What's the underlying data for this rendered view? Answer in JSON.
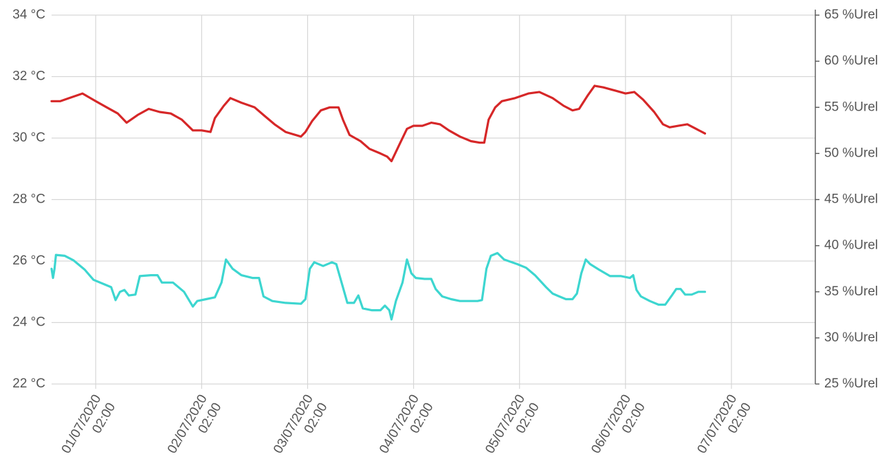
{
  "chart_data": {
    "type": "line",
    "y_left": {
      "ticks": [
        "22 °C",
        "24 °C",
        "26 °C",
        "28 °C",
        "30 °C",
        "32 °C",
        "34 °C"
      ],
      "range": [
        22,
        34
      ],
      "unit": "°C"
    },
    "y_right": {
      "ticks": [
        "25 %Urel",
        "30 %Urel",
        "35 %Urel",
        "40 %Urel",
        "45 %Urel",
        "50 %Urel",
        "55 %Urel",
        "60 %Urel",
        "65 %Urel"
      ],
      "range": [
        25,
        65
      ],
      "unit": "%Urel"
    },
    "x_range": [
      "2020-06-30T16:00",
      "2020-07-07T21:00"
    ],
    "x_ticks": [
      {
        "date": "01/07/2020",
        "time": "02:00",
        "x": "2020-07-01T02:00"
      },
      {
        "date": "02/07/2020",
        "time": "02:00",
        "x": "2020-07-02T02:00"
      },
      {
        "date": "03/07/2020",
        "time": "02:00",
        "x": "2020-07-03T02:00"
      },
      {
        "date": "04/07/2020",
        "time": "02:00",
        "x": "2020-07-04T02:00"
      },
      {
        "date": "05/07/2020",
        "time": "02:00",
        "x": "2020-07-05T02:00"
      },
      {
        "date": "06/07/2020",
        "time": "02:00",
        "x": "2020-07-06T02:00"
      },
      {
        "date": "07/07/2020",
        "time": "02:00",
        "x": "2020-07-07T02:00"
      }
    ],
    "grid": true,
    "series": [
      {
        "axis": "left",
        "color": "#d62728",
        "points": [
          [
            "2020-06-30T16:00",
            31.2
          ],
          [
            "2020-06-30T18:00",
            31.2
          ],
          [
            "2020-06-30T20:00",
            31.3
          ],
          [
            "2020-06-30T23:00",
            31.45
          ],
          [
            "2020-07-01T02:00",
            31.2
          ],
          [
            "2020-07-01T04:30",
            31.0
          ],
          [
            "2020-07-01T07:00",
            30.8
          ],
          [
            "2020-07-01T09:00",
            30.5
          ],
          [
            "2020-07-01T11:30",
            30.75
          ],
          [
            "2020-07-01T14:00",
            30.95
          ],
          [
            "2020-07-01T16:30",
            30.85
          ],
          [
            "2020-07-01T19:00",
            30.8
          ],
          [
            "2020-07-01T21:30",
            30.6
          ],
          [
            "2020-07-02T00:00",
            30.25
          ],
          [
            "2020-07-02T02:00",
            30.25
          ],
          [
            "2020-07-02T04:00",
            30.2
          ],
          [
            "2020-07-02T05:00",
            30.65
          ],
          [
            "2020-07-02T07:00",
            31.05
          ],
          [
            "2020-07-02T08:30",
            31.3
          ],
          [
            "2020-07-02T11:00",
            31.15
          ],
          [
            "2020-07-02T14:00",
            31.0
          ],
          [
            "2020-07-02T16:00",
            30.75
          ],
          [
            "2020-07-02T18:30",
            30.45
          ],
          [
            "2020-07-02T21:00",
            30.2
          ],
          [
            "2020-07-03T00:30",
            30.05
          ],
          [
            "2020-07-03T01:30",
            30.2
          ],
          [
            "2020-07-03T03:00",
            30.55
          ],
          [
            "2020-07-03T05:00",
            30.9
          ],
          [
            "2020-07-03T07:00",
            31.0
          ],
          [
            "2020-07-03T09:00",
            31.0
          ],
          [
            "2020-07-03T10:00",
            30.6
          ],
          [
            "2020-07-03T11:30",
            30.1
          ],
          [
            "2020-07-03T14:00",
            29.9
          ],
          [
            "2020-07-03T16:00",
            29.65
          ],
          [
            "2020-07-03T18:30",
            29.5
          ],
          [
            "2020-07-03T20:00",
            29.4
          ],
          [
            "2020-07-03T21:00",
            29.25
          ],
          [
            "2020-07-03T23:00",
            29.85
          ],
          [
            "2020-07-04T00:30",
            30.3
          ],
          [
            "2020-07-04T02:00",
            30.4
          ],
          [
            "2020-07-04T04:00",
            30.4
          ],
          [
            "2020-07-04T06:00",
            30.5
          ],
          [
            "2020-07-04T08:00",
            30.45
          ],
          [
            "2020-07-04T10:00",
            30.25
          ],
          [
            "2020-07-04T12:30",
            30.05
          ],
          [
            "2020-07-04T15:00",
            29.9
          ],
          [
            "2020-07-04T17:00",
            29.85
          ],
          [
            "2020-07-04T18:00",
            29.85
          ],
          [
            "2020-07-04T19:00",
            30.6
          ],
          [
            "2020-07-04T20:30",
            31.0
          ],
          [
            "2020-07-04T22:00",
            31.2
          ],
          [
            "2020-07-05T01:00",
            31.3
          ],
          [
            "2020-07-05T04:00",
            31.45
          ],
          [
            "2020-07-05T06:30",
            31.5
          ],
          [
            "2020-07-05T09:30",
            31.3
          ],
          [
            "2020-07-05T12:00",
            31.05
          ],
          [
            "2020-07-05T14:00",
            30.9
          ],
          [
            "2020-07-05T15:30",
            30.95
          ],
          [
            "2020-07-05T17:30",
            31.4
          ],
          [
            "2020-07-05T19:00",
            31.7
          ],
          [
            "2020-07-05T21:00",
            31.65
          ],
          [
            "2020-07-05T23:30",
            31.55
          ],
          [
            "2020-07-06T02:00",
            31.45
          ],
          [
            "2020-07-06T04:00",
            31.5
          ],
          [
            "2020-07-06T06:00",
            31.25
          ],
          [
            "2020-07-06T08:30",
            30.85
          ],
          [
            "2020-07-06T10:30",
            30.45
          ],
          [
            "2020-07-06T12:00",
            30.35
          ],
          [
            "2020-07-06T14:00",
            30.4
          ],
          [
            "2020-07-06T16:00",
            30.45
          ],
          [
            "2020-07-06T18:00",
            30.3
          ],
          [
            "2020-07-06T20:00",
            30.15
          ]
        ]
      },
      {
        "axis": "right",
        "color": "#3dd6d0",
        "points": [
          [
            "2020-06-30T16:00",
            37.5
          ],
          [
            "2020-06-30T16:20",
            36.5
          ],
          [
            "2020-06-30T16:40",
            37.5
          ],
          [
            "2020-06-30T17:00",
            39.0
          ],
          [
            "2020-06-30T19:00",
            38.9
          ],
          [
            "2020-06-30T21:00",
            38.4
          ],
          [
            "2020-06-30T23:30",
            37.4
          ],
          [
            "2020-07-01T01:30",
            36.3
          ],
          [
            "2020-07-01T04:00",
            35.8
          ],
          [
            "2020-07-01T05:30",
            35.5
          ],
          [
            "2020-07-01T06:30",
            34.1
          ],
          [
            "2020-07-01T07:30",
            35.0
          ],
          [
            "2020-07-01T08:30",
            35.2
          ],
          [
            "2020-07-01T09:30",
            34.6
          ],
          [
            "2020-07-01T11:00",
            34.7
          ],
          [
            "2020-07-01T12:00",
            36.7
          ],
          [
            "2020-07-01T14:30",
            36.8
          ],
          [
            "2020-07-01T16:00",
            36.8
          ],
          [
            "2020-07-01T17:00",
            36.0
          ],
          [
            "2020-07-01T19:30",
            36.0
          ],
          [
            "2020-07-01T22:00",
            35.0
          ],
          [
            "2020-07-02T00:00",
            33.4
          ],
          [
            "2020-07-02T01:00",
            34.0
          ],
          [
            "2020-07-02T03:00",
            34.2
          ],
          [
            "2020-07-02T05:00",
            34.4
          ],
          [
            "2020-07-02T06:30",
            36.0
          ],
          [
            "2020-07-02T07:30",
            38.5
          ],
          [
            "2020-07-02T09:00",
            37.5
          ],
          [
            "2020-07-02T11:00",
            36.8
          ],
          [
            "2020-07-02T13:30",
            36.5
          ],
          [
            "2020-07-02T15:00",
            36.5
          ],
          [
            "2020-07-02T16:00",
            34.5
          ],
          [
            "2020-07-02T18:00",
            34.0
          ],
          [
            "2020-07-02T21:00",
            33.8
          ],
          [
            "2020-07-03T00:30",
            33.7
          ],
          [
            "2020-07-03T01:30",
            34.2
          ],
          [
            "2020-07-03T02:30",
            37.5
          ],
          [
            "2020-07-03T03:30",
            38.2
          ],
          [
            "2020-07-03T05:30",
            37.8
          ],
          [
            "2020-07-03T07:30",
            38.2
          ],
          [
            "2020-07-03T08:30",
            38.0
          ],
          [
            "2020-07-03T10:00",
            35.5
          ],
          [
            "2020-07-03T11:00",
            33.8
          ],
          [
            "2020-07-03T12:30",
            33.8
          ],
          [
            "2020-07-03T13:30",
            34.6
          ],
          [
            "2020-07-03T14:30",
            33.2
          ],
          [
            "2020-07-03T16:30",
            33.0
          ],
          [
            "2020-07-03T18:30",
            33.0
          ],
          [
            "2020-07-03T19:30",
            33.5
          ],
          [
            "2020-07-03T20:30",
            33.0
          ],
          [
            "2020-07-03T21:00",
            32.0
          ],
          [
            "2020-07-03T22:00",
            34.0
          ],
          [
            "2020-07-03T23:30",
            36.0
          ],
          [
            "2020-07-04T00:30",
            38.5
          ],
          [
            "2020-07-04T01:30",
            37.0
          ],
          [
            "2020-07-04T02:30",
            36.5
          ],
          [
            "2020-07-04T04:30",
            36.4
          ],
          [
            "2020-07-04T06:00",
            36.4
          ],
          [
            "2020-07-04T07:00",
            35.3
          ],
          [
            "2020-07-04T08:30",
            34.5
          ],
          [
            "2020-07-04T10:30",
            34.2
          ],
          [
            "2020-07-04T12:30",
            34.0
          ],
          [
            "2020-07-04T14:30",
            34.0
          ],
          [
            "2020-07-04T16:30",
            34.0
          ],
          [
            "2020-07-04T17:30",
            34.1
          ],
          [
            "2020-07-04T18:30",
            37.5
          ],
          [
            "2020-07-04T19:30",
            38.9
          ],
          [
            "2020-07-04T21:00",
            39.2
          ],
          [
            "2020-07-04T22:30",
            38.5
          ],
          [
            "2020-07-05T01:30",
            38.0
          ],
          [
            "2020-07-05T03:30",
            37.6
          ],
          [
            "2020-07-05T05:30",
            36.8
          ],
          [
            "2020-07-05T08:00",
            35.5
          ],
          [
            "2020-07-05T09:30",
            34.8
          ],
          [
            "2020-07-05T11:00",
            34.5
          ],
          [
            "2020-07-05T12:30",
            34.2
          ],
          [
            "2020-07-05T14:00",
            34.2
          ],
          [
            "2020-07-05T15:00",
            34.8
          ],
          [
            "2020-07-05T16:00",
            37.0
          ],
          [
            "2020-07-05T17:00",
            38.5
          ],
          [
            "2020-07-05T18:00",
            38.0
          ],
          [
            "2020-07-05T20:00",
            37.4
          ],
          [
            "2020-07-05T22:30",
            36.7
          ],
          [
            "2020-07-06T01:00",
            36.7
          ],
          [
            "2020-07-06T03:00",
            36.5
          ],
          [
            "2020-07-06T03:45",
            36.8
          ],
          [
            "2020-07-06T04:30",
            35.2
          ],
          [
            "2020-07-06T05:30",
            34.5
          ],
          [
            "2020-07-06T07:30",
            34.0
          ],
          [
            "2020-07-06T09:30",
            33.6
          ],
          [
            "2020-07-06T11:00",
            33.6
          ],
          [
            "2020-07-06T12:30",
            34.6
          ],
          [
            "2020-07-06T13:30",
            35.3
          ],
          [
            "2020-07-06T14:30",
            35.3
          ],
          [
            "2020-07-06T15:30",
            34.7
          ],
          [
            "2020-07-06T17:00",
            34.7
          ],
          [
            "2020-07-06T18:30",
            35.0
          ],
          [
            "2020-07-06T20:00",
            35.0
          ]
        ]
      }
    ]
  }
}
